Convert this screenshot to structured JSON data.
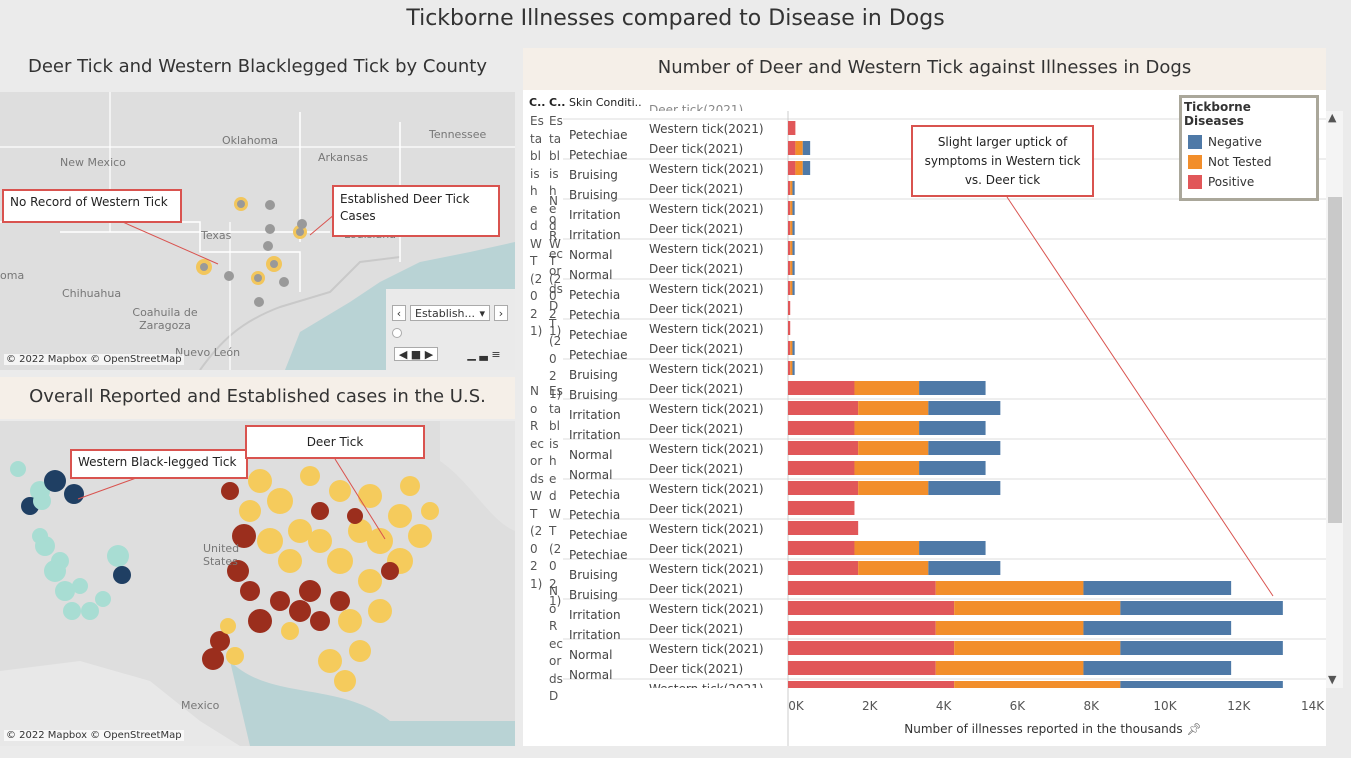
{
  "dashboard": {
    "title": "Tickborne Illnesses compared to Disease in Dogs"
  },
  "county_map": {
    "title": "Deer Tick and Western Blacklegged Tick by County",
    "labels": [
      "Oklahoma",
      "Arkansas",
      "Tennessee",
      "New Mexico",
      "Texas",
      "Louisiana",
      "Chihuahua",
      "Coahuila de Zaragoza",
      "Nuevo León",
      "oma"
    ],
    "callout_western": "No Record of Western Tick",
    "callout_deer": "Established Deer Tick Cases",
    "copyright": "© 2022 Mapbox © OpenStreetMap",
    "filter_value": "Establish...",
    "colors": {
      "established": "#f2c65c",
      "none": "#999999"
    }
  },
  "us_map": {
    "title": "Overall Reported and Established cases in the U.S.",
    "labels": [
      "United States",
      "Mexico"
    ],
    "callout_western": "Western Black-legged Tick",
    "callout_deer": "Deer Tick",
    "copyright": "© 2022 Mapbox © OpenStreetMap",
    "colors": {
      "deer": "#f5cb5c",
      "deer_established": "#9b2e1d",
      "western": "#a8ddd3",
      "western_established": "#1f3f63"
    }
  },
  "bar_chart": {
    "title": "Number of Deer and Western Tick against Illnesses in Dogs",
    "col_headers": [
      "C..",
      "C..",
      "Skin Conditi.."
    ],
    "group_labels": {
      "est_wt": "Established WT(2021)",
      "no_rec_dt": "No Records DT(2021)",
      "no_rec_wt": "No Records WT(2021)",
      "no_rec_dt2": "No Records D"
    },
    "annotation": "Slight larger uptick of symptoms in Western tick vs. Deer tick",
    "axis_title": "Number of illnesses reported in the thousands",
    "ticks": [
      "0K",
      "2K",
      "4K",
      "6K",
      "8K",
      "10K",
      "12K",
      "14K"
    ],
    "legend_title": "Tickborne Diseases",
    "legend": [
      {
        "name": "Negative",
        "color": "#4e79a7"
      },
      {
        "name": "Not Tested",
        "color": "#f28e2b"
      },
      {
        "name": "Positive",
        "color": "#e15759"
      }
    ],
    "tick_label_partial": "Deer tick(2021)"
  },
  "chart_data": {
    "type": "bar",
    "xlabel": "Number of illnesses reported in the thousands",
    "xlim": [
      0,
      14000
    ],
    "series_order": [
      "Positive",
      "Not Tested",
      "Negative"
    ],
    "rows": [
      {
        "condition": "Petechia",
        "tick": "Western tick(2021)",
        "values": [
          200,
          0,
          0
        ]
      },
      {
        "condition": "Petechiae",
        "tick": "Deer tick(2021)",
        "values": [
          200,
          200,
          200
        ]
      },
      {
        "condition": "Petechiae",
        "tick": "Western tick(2021)",
        "values": [
          200,
          200,
          200
        ]
      },
      {
        "condition": "Bruising",
        "tick": "Deer tick(2021)",
        "values": [
          60,
          60,
          60
        ]
      },
      {
        "condition": "Bruising",
        "tick": "Western tick(2021)",
        "values": [
          60,
          60,
          60
        ]
      },
      {
        "condition": "Irritation",
        "tick": "Deer tick(2021)",
        "values": [
          60,
          60,
          60
        ]
      },
      {
        "condition": "Irritation",
        "tick": "Western tick(2021)",
        "values": [
          60,
          60,
          60
        ]
      },
      {
        "condition": "Normal",
        "tick": "Deer tick(2021)",
        "values": [
          60,
          60,
          60
        ]
      },
      {
        "condition": "Normal",
        "tick": "Western tick(2021)",
        "values": [
          60,
          60,
          60
        ]
      },
      {
        "condition": "Petechia",
        "tick": "Deer tick(2021)",
        "values": [
          60,
          0,
          0
        ]
      },
      {
        "condition": "Petechia",
        "tick": "Western tick(2021)",
        "values": [
          60,
          0,
          0
        ]
      },
      {
        "condition": "Petechiae",
        "tick": "Deer tick(2021)",
        "values": [
          60,
          60,
          60
        ]
      },
      {
        "condition": "Petechiae",
        "tick": "Western tick(2021)",
        "values": [
          60,
          60,
          60
        ]
      },
      {
        "condition": "Bruising",
        "tick": "Deer tick(2021)",
        "values": [
          1800,
          1750,
          1800
        ]
      },
      {
        "condition": "Bruising",
        "tick": "Western tick(2021)",
        "values": [
          1900,
          1900,
          1950
        ]
      },
      {
        "condition": "Irritation",
        "tick": "Deer tick(2021)",
        "values": [
          1800,
          1750,
          1800
        ]
      },
      {
        "condition": "Irritation",
        "tick": "Western tick(2021)",
        "values": [
          1900,
          1900,
          1950
        ]
      },
      {
        "condition": "Normal",
        "tick": "Deer tick(2021)",
        "values": [
          1800,
          1750,
          1800
        ]
      },
      {
        "condition": "Normal",
        "tick": "Western tick(2021)",
        "values": [
          1900,
          1900,
          1950
        ]
      },
      {
        "condition": "Petechia",
        "tick": "Deer tick(2021)",
        "values": [
          1800,
          0,
          0
        ]
      },
      {
        "condition": "Petechia",
        "tick": "Western tick(2021)",
        "values": [
          1900,
          0,
          0
        ]
      },
      {
        "condition": "Petechiae",
        "tick": "Deer tick(2021)",
        "values": [
          1800,
          1750,
          1800
        ]
      },
      {
        "condition": "Petechiae",
        "tick": "Western tick(2021)",
        "values": [
          1900,
          1900,
          1950
        ]
      },
      {
        "condition": "Bruising",
        "tick": "Deer tick(2021)",
        "values": [
          4000,
          4000,
          4000
        ]
      },
      {
        "condition": "Bruising",
        "tick": "Western tick(2021)",
        "values": [
          4500,
          4500,
          4400
        ]
      },
      {
        "condition": "Irritation",
        "tick": "Deer tick(2021)",
        "values": [
          4000,
          4000,
          4000
        ]
      },
      {
        "condition": "Irritation",
        "tick": "Western tick(2021)",
        "values": [
          4500,
          4500,
          4400
        ]
      },
      {
        "condition": "Normal",
        "tick": "Deer tick(2021)",
        "values": [
          4000,
          4000,
          4000
        ]
      },
      {
        "condition": "Normal",
        "tick": "Western tick(2021)",
        "values": [
          4500,
          4500,
          4400
        ]
      }
    ]
  }
}
